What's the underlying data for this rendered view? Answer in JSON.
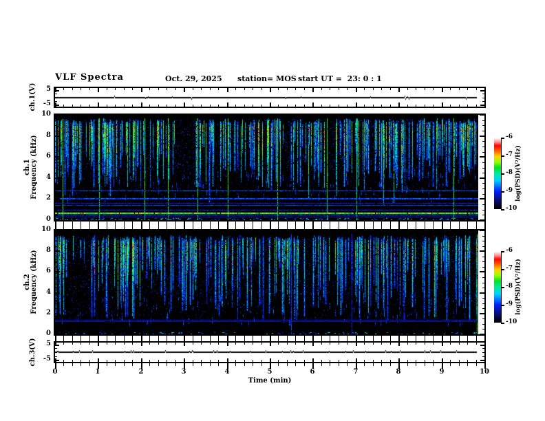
{
  "header": {
    "title": "VLF Spectra",
    "date": "Oct. 29, 2025",
    "station": "station= MOS",
    "start_ut": "start UT =  23: 0 : 1"
  },
  "chart_data": {
    "type": "heatmap",
    "title": "VLF Spectra",
    "xlabel": "Time (min)",
    "xlim": [
      0,
      10
    ],
    "x_ticks": [
      0,
      1,
      2,
      3,
      4,
      5,
      6,
      7,
      8,
      9,
      10
    ],
    "x_minor_step": 0.2,
    "data_end_min": 9.85,
    "colorbar": {
      "label": "log(PSD)(V²/Hz)",
      "ticks": [
        -6,
        -7,
        -8,
        -9,
        -10
      ],
      "top_value": -6,
      "bottom_value": -10,
      "colormap_order": "white-pink-red-orange-yellow-green-cyan-blue-navy-black (top to bottom)"
    },
    "panels": [
      {
        "id": "ch1_waveform",
        "type": "line",
        "ylabel": "ch.1(V)",
        "y_ticks": [
          5,
          -5
        ],
        "ylim": [
          -6.25,
          6.25
        ],
        "signal_mean": 0,
        "spike_prob": 0.012,
        "spike_amp": 2,
        "spike_bias": "none",
        "seed": 11
      },
      {
        "id": "ch1_spectrogram",
        "type": "spectrogram",
        "ylabel_l1": "ch.1",
        "ylabel_l2": "Frequency (kHz)",
        "y_ticks": [
          0,
          2,
          4,
          6,
          8,
          10
        ],
        "ylim": [
          0,
          10
        ],
        "y_minor_step": 0.5,
        "value_range_log_psd": [
          -10,
          -6
        ],
        "seed": 42,
        "streak_count": 250,
        "streak_top_khz": [
          9.1,
          9.65
        ],
        "deep_prob": 0.12,
        "core_v": [
          0.35,
          0.75
        ],
        "red_prob": 0.22,
        "noise_high": 2600,
        "noise_band": [
          4.8,
          9.6
        ],
        "noise_mid": 600,
        "mid_band": [
          2.0,
          4.8
        ],
        "tails": 150,
        "bottom_speckle": 220,
        "vertical_lines": [
          {
            "t": 0.18,
            "v": 0.6
          },
          {
            "t": 1.03,
            "v": 0.58
          },
          {
            "t": 2.08,
            "v": 0.6
          },
          {
            "t": 2.63,
            "v": 0.6
          },
          {
            "t": 3.32,
            "v": 0.58
          },
          {
            "t": 4.03,
            "v": 0.6
          },
          {
            "t": 5.18,
            "v": 0.6
          },
          {
            "t": 6.33,
            "v": 0.58
          },
          {
            "t": 7.02,
            "v": 0.55
          },
          {
            "t": 9.28,
            "v": 0.6
          }
        ],
        "horizontal_lines": [
          {
            "f": 2.75,
            "v": 0.3
          },
          {
            "f": 2.05,
            "v": 0.3
          },
          {
            "f": 1.95,
            "v": 0.26
          },
          {
            "f": 1.55,
            "v": 0.24
          },
          {
            "f": 1.35,
            "v": 0.28
          },
          {
            "f": 0.95,
            "v": 0.26
          },
          {
            "f": 0.65,
            "v": 0.62,
            "px": 2
          },
          {
            "f": 0.45,
            "v": 0.3
          },
          {
            "f": 0.28,
            "v": 0.24
          }
        ]
      },
      {
        "id": "ch2_spectrogram",
        "type": "spectrogram",
        "ylabel_l1": "ch.2",
        "ylabel_l2": "Frequency (kHz)",
        "y_ticks": [
          0,
          2,
          4,
          6,
          8,
          10
        ],
        "ylim": [
          0,
          10
        ],
        "y_minor_step": 0.5,
        "value_range_log_psd": [
          -10,
          -6
        ],
        "seed": 77,
        "streak_count": 230,
        "streak_top_khz": [
          9.0,
          9.55
        ],
        "deep_prob": 0.3,
        "core_v": [
          0.3,
          0.68
        ],
        "red_prob": 0.1,
        "noise_high": 2400,
        "noise_band": [
          3.8,
          9.5
        ],
        "noise_mid": 500,
        "mid_band": [
          1.2,
          4.0
        ],
        "tails": 140,
        "bottom_speckle": 120,
        "vertical_lines": [
          {
            "t": 5.5,
            "v": 0.28
          },
          {
            "t": 6.9,
            "v": 0.25
          },
          {
            "t": 9.82,
            "v": 0.6
          }
        ],
        "horizontal_lines": [
          {
            "f": 1.35,
            "v": 0.22
          },
          {
            "f": 1.2,
            "v": 0.2
          }
        ]
      },
      {
        "id": "ch3_waveform",
        "type": "line",
        "ylabel": "ch.3(V)",
        "y_ticks": [
          5,
          -5
        ],
        "ylim": [
          -6.25,
          6.25
        ],
        "signal_mean": 0,
        "spike_prob": 0.06,
        "spike_amp": 2,
        "spike_bias": "up",
        "seed": 13
      }
    ]
  }
}
